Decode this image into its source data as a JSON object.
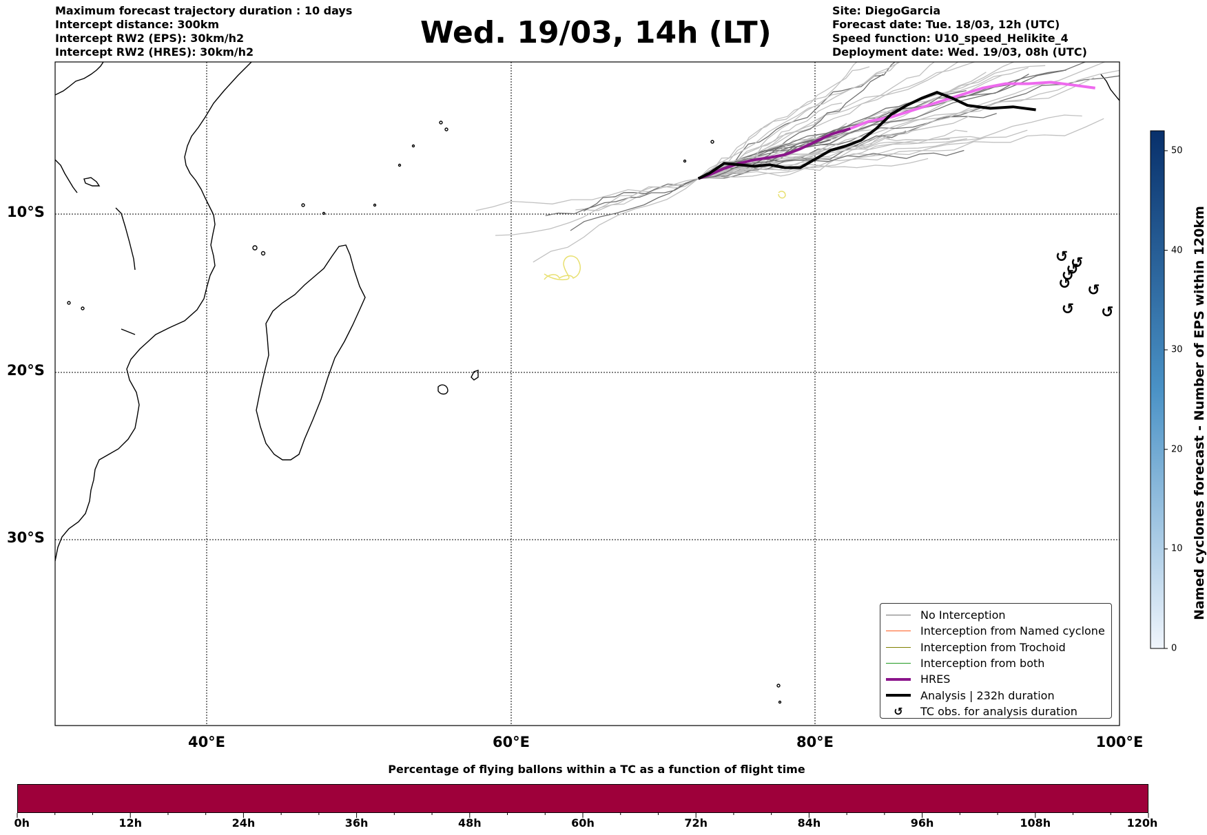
{
  "header": {
    "left_lines": [
      "Maximum forecast trajectory duration : 10 days",
      "Intercept distance: 300km",
      "Intercept RW2 (EPS):  30km/h2",
      "Intercept RW2 (HRES): 30km/h2"
    ],
    "right_lines": [
      "Site: DiegoGarcia",
      "Forecast date: Tue. 18/03, 12h (UTC)",
      "Speed function: U10_speed_Helikite_4",
      "Deployment date: Wed. 19/03, 08h (UTC)"
    ],
    "title": "Wed. 19/03, 14h (LT)"
  },
  "map": {
    "extent": {
      "lon": [
        30,
        100
      ],
      "lat": [
        0.5,
        -43
      ]
    },
    "lat_labels": [
      {
        "lat": -10,
        "text": "10°S"
      },
      {
        "lat": -20,
        "text": "20°S"
      },
      {
        "lat": -30,
        "text": "30°S"
      }
    ],
    "lon_labels": [
      {
        "lon": 40,
        "text": "40°E"
      },
      {
        "lon": 60,
        "text": "60°E"
      },
      {
        "lon": 80,
        "text": "80°E"
      },
      {
        "lon": 100,
        "text": "100°E"
      }
    ],
    "colors": {
      "no_interception": "#707070",
      "eps_light": "#c0c0c0",
      "named_cyclone": "#ff5a1e",
      "trochoid": "#808000",
      "both": "#1f9a1f",
      "hres": "#8b158b",
      "hres_late": "#ee6aee",
      "analysis": "#000000",
      "tc_obs_loop": "#e8e070",
      "coast": "#000000"
    },
    "hres_track": [
      [
        72.3,
        -7.55
      ],
      [
        73.0,
        -7.3
      ],
      [
        74.0,
        -6.85
      ],
      [
        75.0,
        -6.5
      ],
      [
        76.0,
        -6.25
      ],
      [
        77.0,
        -6.1
      ],
      [
        78.0,
        -5.9
      ],
      [
        79.0,
        -5.5
      ],
      [
        80.0,
        -5.0
      ],
      [
        81.0,
        -4.5
      ],
      [
        82.3,
        -4.1
      ]
    ],
    "hres_late_track": [
      [
        82.3,
        -4.1
      ],
      [
        83.5,
        -3.6
      ],
      [
        85.0,
        -3.3
      ],
      [
        86.5,
        -2.8
      ],
      [
        88.0,
        -2.3
      ],
      [
        89.5,
        -1.8
      ],
      [
        91.0,
        -1.3
      ],
      [
        92.5,
        -1.0
      ],
      [
        94.0,
        -1.0
      ],
      [
        95.5,
        -0.9
      ],
      [
        97.0,
        -1.1
      ],
      [
        98.4,
        -1.3
      ]
    ],
    "analysis_track": [
      [
        72.3,
        -7.55
      ],
      [
        73.0,
        -7.2
      ],
      [
        74.0,
        -6.5
      ],
      [
        75.0,
        -6.6
      ],
      [
        76.0,
        -6.7
      ],
      [
        77.0,
        -6.6
      ],
      [
        78.0,
        -6.8
      ],
      [
        79.0,
        -6.8
      ],
      [
        80.0,
        -6.2
      ],
      [
        81.0,
        -5.6
      ],
      [
        82.0,
        -5.3
      ],
      [
        83.0,
        -4.9
      ],
      [
        84.0,
        -4.1
      ],
      [
        85.0,
        -3.1
      ],
      [
        86.0,
        -2.5
      ],
      [
        87.0,
        -2.0
      ],
      [
        88.0,
        -1.6
      ],
      [
        89.0,
        -2.0
      ],
      [
        90.0,
        -2.5
      ],
      [
        91.5,
        -2.7
      ],
      [
        93.0,
        -2.6
      ],
      [
        94.5,
        -2.8
      ]
    ],
    "tc_obs": [
      [
        96.2,
        -13.0
      ],
      [
        96.9,
        -13.8
      ],
      [
        97.2,
        -13.4
      ],
      [
        96.6,
        -14.2
      ],
      [
        96.4,
        -14.7
      ],
      [
        98.3,
        -15.1
      ],
      [
        96.6,
        -16.3
      ],
      [
        99.2,
        -16.5
      ]
    ]
  },
  "legend": {
    "items": [
      {
        "label": "No Interception",
        "type": "line",
        "color": "#707070",
        "width": 1
      },
      {
        "label": "Interception from Named cyclone",
        "type": "line",
        "color": "#ff5a1e",
        "width": 1
      },
      {
        "label": "Interception from Trochoid",
        "type": "line",
        "color": "#808000",
        "width": 1
      },
      {
        "label": "Interception from both",
        "type": "line",
        "color": "#1f9a1f",
        "width": 1
      },
      {
        "label": "HRES",
        "type": "line",
        "color": "#8b158b",
        "width": 3
      },
      {
        "label": "Analysis | 232h duration",
        "type": "line",
        "color": "#000000",
        "width": 3
      },
      {
        "label": "TC obs. for analysis duration",
        "type": "symbol",
        "symbol": "cyclone-icon",
        "glyph": "↺"
      }
    ]
  },
  "colorbar_vertical": {
    "label": "Named cyclones forecast - Number of EPS within 120km",
    "ticks": [
      "0",
      "10",
      "20",
      "30",
      "40",
      "50"
    ],
    "tick_values": [
      0,
      10,
      20,
      30,
      40,
      50
    ],
    "range": [
      0,
      52
    ],
    "colors": [
      "#f0f5fc",
      "#4a92c6",
      "#08306b"
    ]
  },
  "colorbar_horizontal": {
    "title": "Percentage of flying ballons within a TC as a function of flight time",
    "ticks": [
      "0h",
      "12h",
      "24h",
      "36h",
      "48h",
      "60h",
      "72h",
      "84h",
      "96h",
      "108h",
      "120h"
    ],
    "tick_values": [
      0,
      12,
      24,
      36,
      48,
      60,
      72,
      84,
      96,
      108,
      120
    ],
    "range": [
      0,
      120
    ],
    "color": "#9e003a"
  }
}
